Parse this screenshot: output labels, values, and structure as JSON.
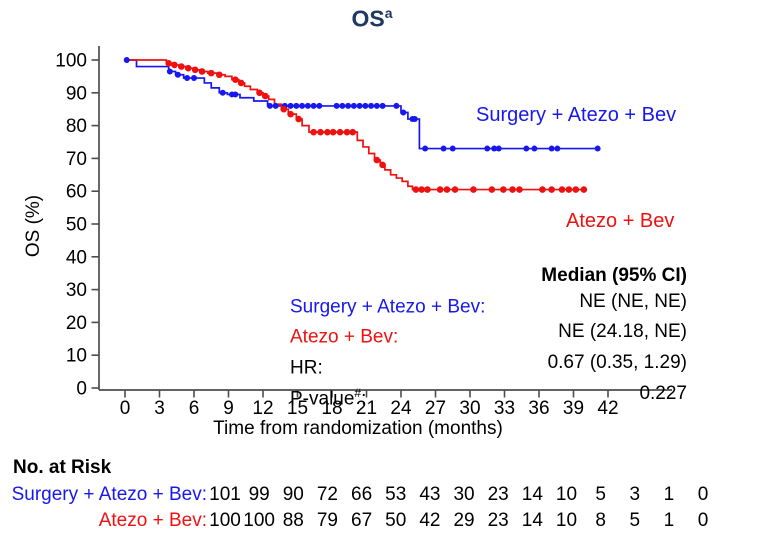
{
  "chart_data": {
    "type": "line",
    "subtype": "kaplan-meier-step-curve",
    "title": "OS",
    "title_sup": "a",
    "title_color": "#1F3864",
    "xlabel": "Time from randomization (months)",
    "ylabel": "OS (%)",
    "x_ticks": [
      0,
      3,
      6,
      9,
      12,
      15,
      18,
      21,
      24,
      27,
      30,
      33,
      36,
      39,
      42
    ],
    "y_ticks": [
      0,
      10,
      20,
      30,
      40,
      50,
      60,
      70,
      80,
      90,
      100
    ],
    "xlim": [
      0,
      42
    ],
    "ylim": [
      0,
      100
    ],
    "grid": "off",
    "axis_color": "#4D4D4D",
    "series": [
      {
        "name": "Surgery + Atezo + Bev",
        "color": "#1717EE",
        "steps": [
          [
            0,
            100
          ],
          [
            1.0,
            98
          ],
          [
            3.8,
            96.5
          ],
          [
            4.4,
            95.5
          ],
          [
            5.1,
            94.5
          ],
          [
            6.9,
            93
          ],
          [
            7.5,
            91.5
          ],
          [
            8.2,
            90
          ],
          [
            8.9,
            89.5
          ],
          [
            10.0,
            88.5
          ],
          [
            11.2,
            87.5
          ],
          [
            12.4,
            86
          ],
          [
            24.0,
            84
          ],
          [
            24.6,
            82
          ],
          [
            25.6,
            73
          ],
          [
            41.1,
            73
          ]
        ],
        "censors": [
          [
            0.15,
            100
          ],
          [
            3.9,
            96.5
          ],
          [
            4.6,
            95.5
          ],
          [
            5.4,
            94.5
          ],
          [
            6.0,
            94.5
          ],
          [
            8.5,
            90
          ],
          [
            9.3,
            89.5
          ],
          [
            9.6,
            89.5
          ],
          [
            12.6,
            86
          ],
          [
            13.1,
            86
          ],
          [
            13.9,
            86
          ],
          [
            14.4,
            86
          ],
          [
            14.9,
            86
          ],
          [
            15.4,
            86
          ],
          [
            15.9,
            86
          ],
          [
            16.4,
            86
          ],
          [
            16.9,
            86
          ],
          [
            18.4,
            86
          ],
          [
            18.9,
            86
          ],
          [
            19.4,
            86
          ],
          [
            19.9,
            86
          ],
          [
            20.4,
            86
          ],
          [
            20.9,
            86
          ],
          [
            21.4,
            86
          ],
          [
            21.9,
            86
          ],
          [
            22.4,
            86
          ],
          [
            23.6,
            86
          ],
          [
            24.2,
            84
          ],
          [
            25.0,
            82
          ],
          [
            25.2,
            82
          ],
          [
            26.1,
            73
          ],
          [
            27.7,
            73
          ],
          [
            28.5,
            73
          ],
          [
            31.5,
            73
          ],
          [
            32.1,
            73
          ],
          [
            32.5,
            73
          ],
          [
            34.9,
            73
          ],
          [
            35.6,
            73
          ],
          [
            37.1,
            73
          ],
          [
            37.6,
            73
          ],
          [
            41.1,
            73
          ]
        ]
      },
      {
        "name": "Atezo + Bev",
        "color": "#EF1010",
        "steps": [
          [
            0,
            100
          ],
          [
            3.6,
            99
          ],
          [
            4.1,
            98.5
          ],
          [
            4.7,
            98
          ],
          [
            5.3,
            97.5
          ],
          [
            5.9,
            97
          ],
          [
            6.5,
            96.5
          ],
          [
            7.2,
            96
          ],
          [
            8.0,
            95.5
          ],
          [
            8.7,
            95
          ],
          [
            9.3,
            94
          ],
          [
            9.9,
            93
          ],
          [
            10.4,
            92
          ],
          [
            10.9,
            91
          ],
          [
            11.5,
            90
          ],
          [
            12.0,
            89
          ],
          [
            12.5,
            88
          ],
          [
            13.0,
            86.5
          ],
          [
            13.6,
            85
          ],
          [
            14.2,
            83.5
          ],
          [
            14.9,
            82
          ],
          [
            15.4,
            80
          ],
          [
            16.0,
            78
          ],
          [
            20.2,
            75.5
          ],
          [
            20.7,
            73.5
          ],
          [
            21.2,
            71.5
          ],
          [
            21.7,
            69.5
          ],
          [
            22.2,
            68
          ],
          [
            22.6,
            66.5
          ],
          [
            23.1,
            65
          ],
          [
            23.6,
            64
          ],
          [
            24.1,
            63
          ],
          [
            24.6,
            61.5
          ],
          [
            25.0,
            60.5
          ],
          [
            39.9,
            60.5
          ]
        ],
        "censors": [
          [
            3.8,
            99
          ],
          [
            4.3,
            98.5
          ],
          [
            4.9,
            98
          ],
          [
            5.5,
            97.5
          ],
          [
            6.1,
            97
          ],
          [
            6.7,
            96.5
          ],
          [
            7.5,
            96
          ],
          [
            8.2,
            95.5
          ],
          [
            9.6,
            94
          ],
          [
            10.1,
            93
          ],
          [
            11.7,
            90
          ],
          [
            12.2,
            89
          ],
          [
            13.8,
            85
          ],
          [
            14.4,
            83.5
          ],
          [
            15.1,
            82
          ],
          [
            16.4,
            78
          ],
          [
            17.0,
            78
          ],
          [
            17.6,
            78
          ],
          [
            18.1,
            78
          ],
          [
            18.7,
            78
          ],
          [
            19.3,
            78
          ],
          [
            19.8,
            78
          ],
          [
            21.9,
            69.5
          ],
          [
            22.4,
            68
          ],
          [
            25.3,
            60.5
          ],
          [
            25.8,
            60.5
          ],
          [
            26.3,
            60.5
          ],
          [
            27.4,
            60.5
          ],
          [
            28.0,
            60.5
          ],
          [
            28.7,
            60.5
          ],
          [
            30.3,
            60.5
          ],
          [
            31.9,
            60.5
          ],
          [
            32.9,
            60.5
          ],
          [
            33.7,
            60.5
          ],
          [
            34.3,
            60.5
          ],
          [
            36.3,
            60.5
          ],
          [
            37.1,
            60.5
          ],
          [
            38.0,
            60.5
          ],
          [
            38.6,
            60.5
          ],
          [
            39.2,
            60.5
          ],
          [
            39.9,
            60.5
          ]
        ]
      }
    ],
    "stats": {
      "header": "Median (95% CI)",
      "rows": [
        {
          "label_pre": "Surgery + Atezo + Bev:",
          "label_sup": "",
          "label_post": "",
          "value": "NE (NE, NE)",
          "color": "#1717EE"
        },
        {
          "label_pre": "Atezo + Bev:",
          "label_sup": "",
          "label_post": "",
          "value": "NE (24.18, NE)",
          "color": "#EF1010"
        },
        {
          "label_pre": "HR:",
          "label_sup": "",
          "label_post": "",
          "value": "0.67 (0.35, 1.29)",
          "color": "#000000"
        },
        {
          "label_pre": "P-value",
          "label_sup": "#",
          "label_post": ":",
          "value": "0.227",
          "color": "#000000"
        }
      ]
    },
    "risk_table": {
      "title": "No. at Risk",
      "rows": [
        {
          "label": "Surgery + Atezo + Bev:",
          "color": "#1717EE",
          "values": [
            101,
            99,
            90,
            72,
            66,
            53,
            43,
            30,
            23,
            14,
            10,
            5,
            3,
            1,
            0
          ]
        },
        {
          "label": "Atezo + Bev:",
          "color": "#EF1010",
          "values": [
            100,
            100,
            88,
            79,
            67,
            50,
            42,
            29,
            23,
            14,
            10,
            8,
            5,
            1,
            0
          ]
        }
      ]
    }
  }
}
